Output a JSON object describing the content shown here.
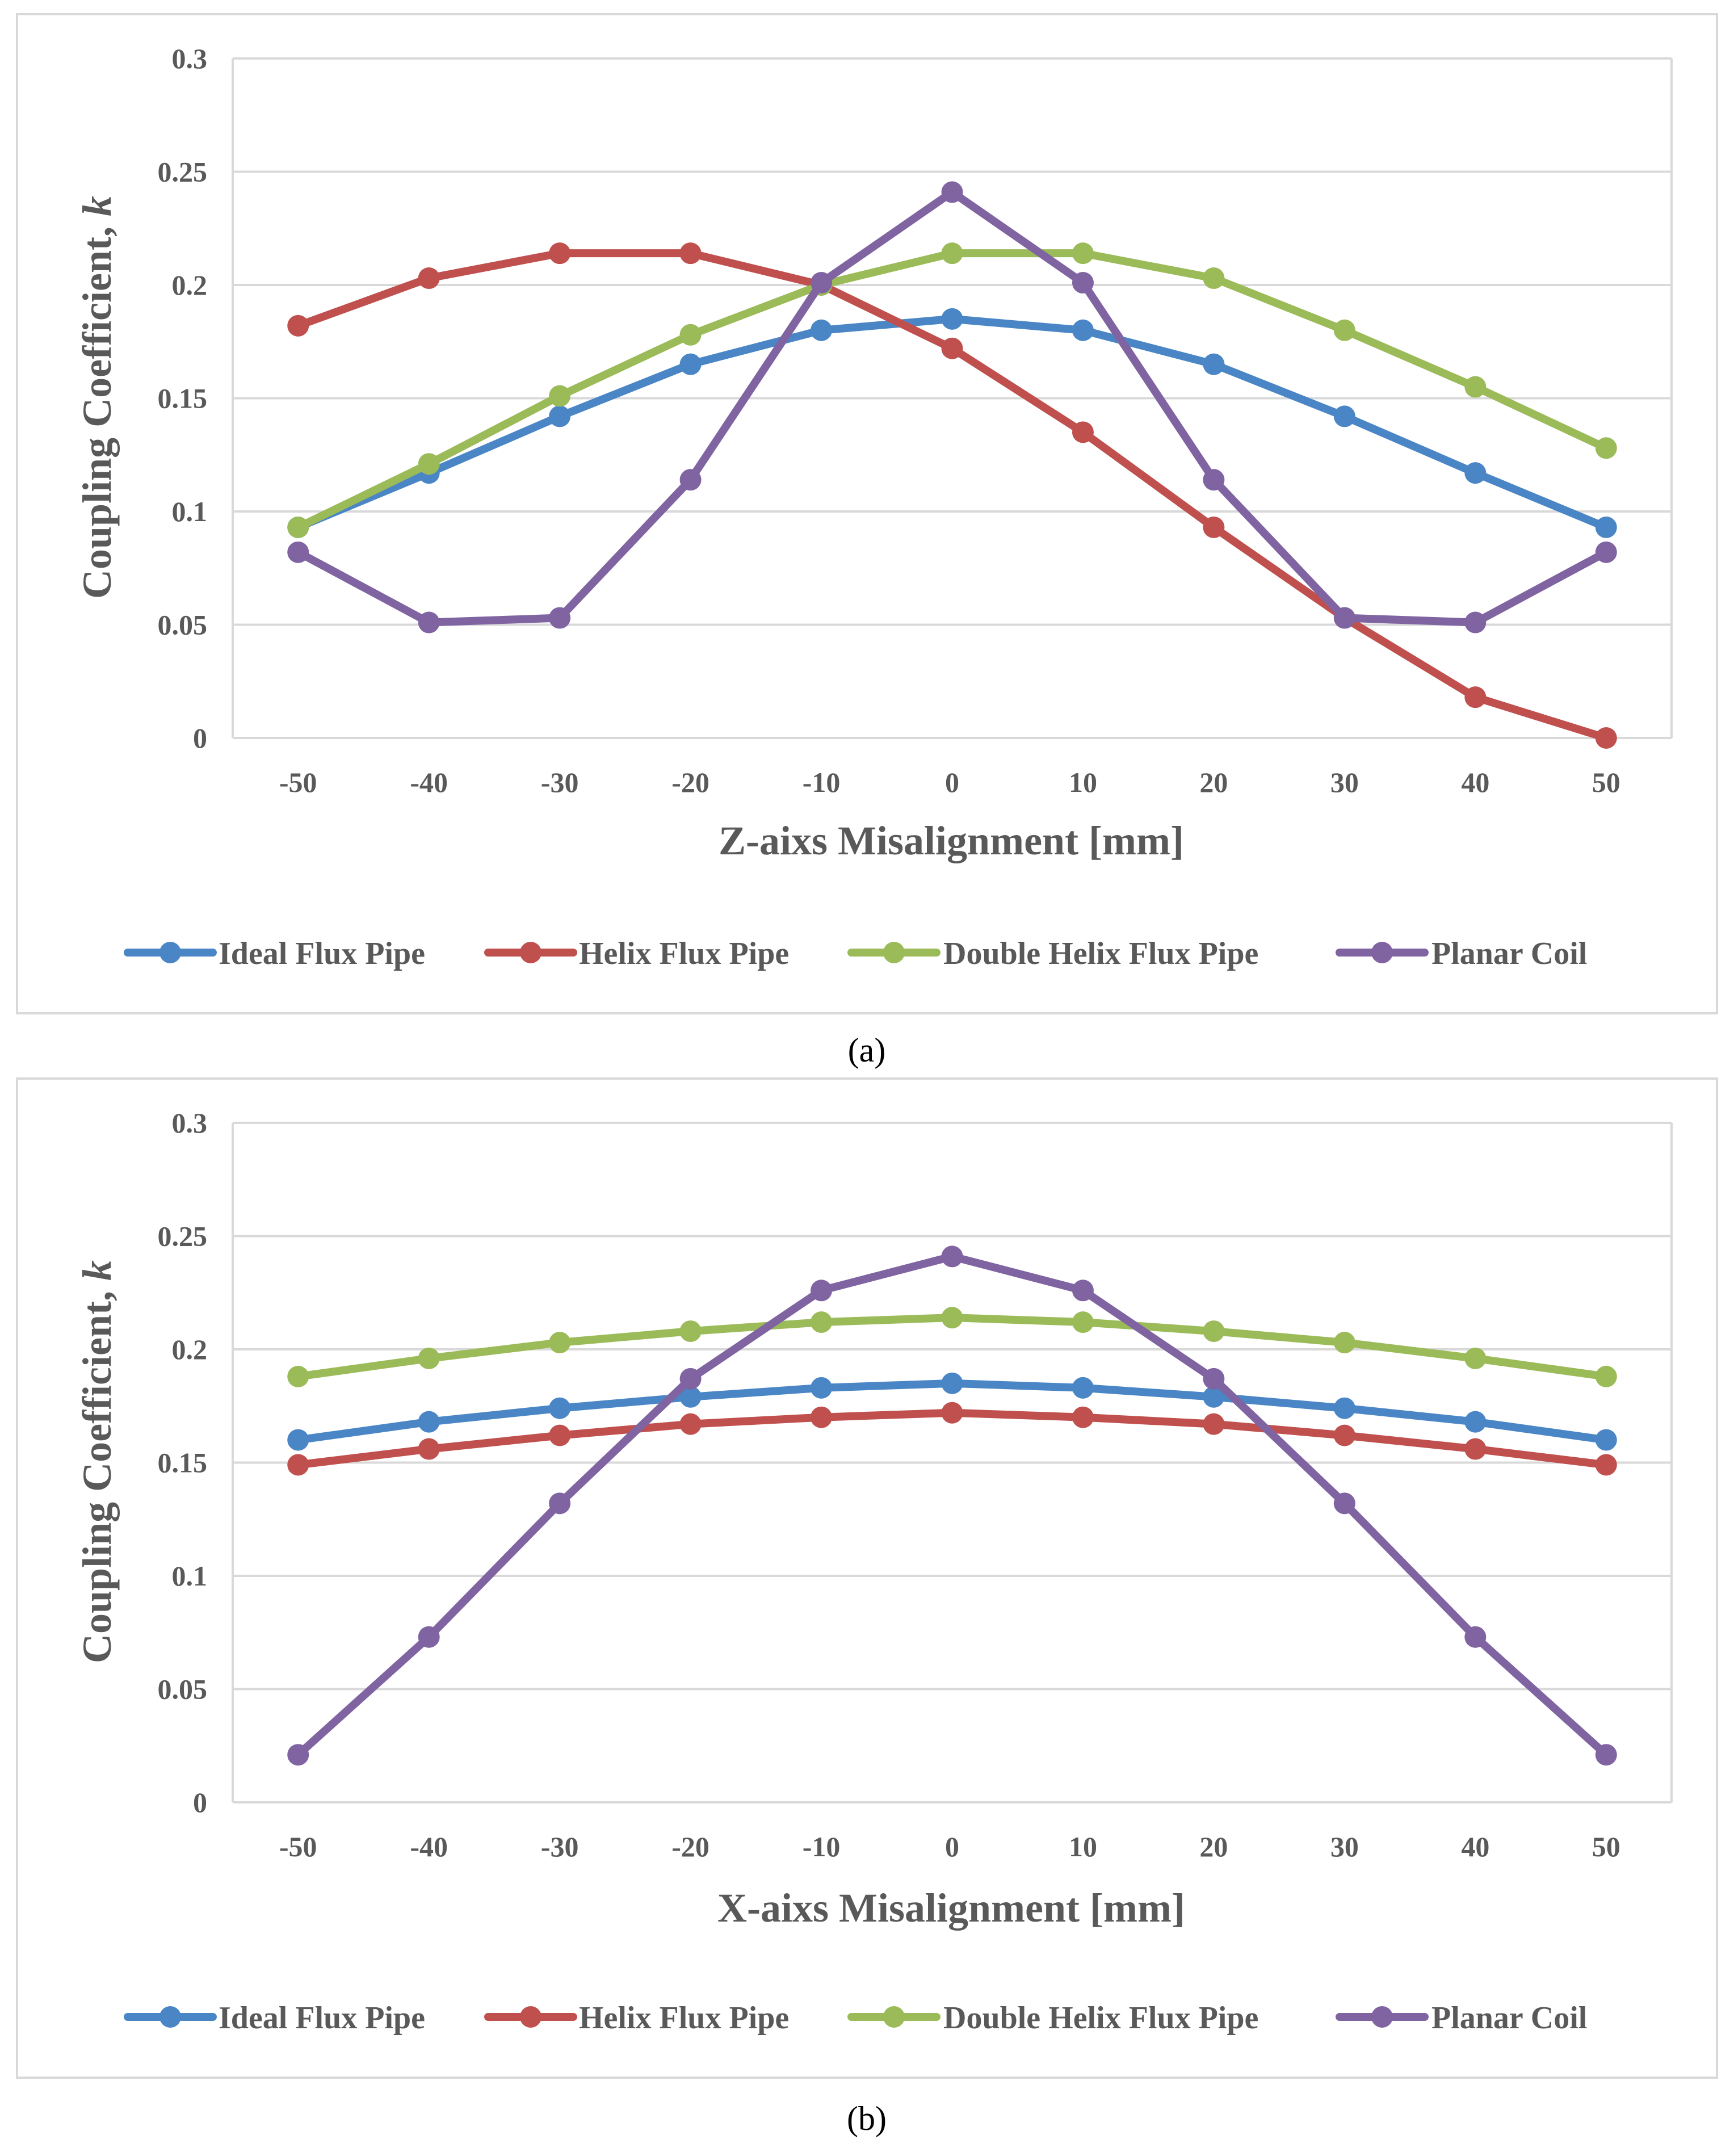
{
  "legend": [
    "Ideal Flux Pipe",
    "Helix Flux Pipe",
    "Double Helix Flux Pipe",
    "Planar Coil"
  ],
  "colors": {
    "Ideal Flux Pipe": "#4a86c5",
    "Helix Flux Pipe": "#c0504d",
    "Double Helix Flux Pipe": "#9bbb59",
    "Planar Coil": "#8064a2"
  },
  "chart_data": [
    {
      "type": "line",
      "caption": "(a)",
      "xlabel": "Z-aixs Misalignment [mm]",
      "ylabel_main": "Coupling Coefficient, ",
      "ylabel_italic": "k",
      "x": [
        -50,
        -40,
        -30,
        -20,
        -10,
        0,
        10,
        20,
        30,
        40,
        50
      ],
      "ylim": [
        0,
        0.3
      ],
      "yticks": [
        "0",
        "0.05",
        "0.1",
        "0.15",
        "0.2",
        "0.25",
        "0.3"
      ],
      "grid": true,
      "legend_position": "bottom",
      "series": [
        {
          "name": "Ideal Flux Pipe",
          "values": [
            0.093,
            0.117,
            0.142,
            0.165,
            0.18,
            0.185,
            0.18,
            0.165,
            0.142,
            0.117,
            0.093
          ]
        },
        {
          "name": "Helix Flux Pipe",
          "values": [
            0.182,
            0.203,
            0.214,
            0.214,
            0.2,
            0.172,
            0.135,
            0.093,
            0.053,
            0.018,
            0.0
          ]
        },
        {
          "name": "Double Helix Flux Pipe",
          "values": [
            0.093,
            0.121,
            0.151,
            0.178,
            0.2,
            0.214,
            0.214,
            0.203,
            0.18,
            0.155,
            0.128
          ]
        },
        {
          "name": "Planar Coil",
          "values": [
            0.082,
            0.051,
            0.053,
            0.114,
            0.201,
            0.241,
            0.201,
            0.114,
            0.053,
            0.051,
            0.082
          ]
        }
      ]
    },
    {
      "type": "line",
      "caption": "(b)",
      "xlabel": "X-aixs Misalignment [mm]",
      "ylabel_main": "Coupling Coefficient, ",
      "ylabel_italic": "k",
      "x": [
        -50,
        -40,
        -30,
        -20,
        -10,
        0,
        10,
        20,
        30,
        40,
        50
      ],
      "ylim": [
        0,
        0.3
      ],
      "yticks": [
        "0",
        "0.05",
        "0.1",
        "0.15",
        "0.2",
        "0.25",
        "0.3"
      ],
      "grid": true,
      "legend_position": "bottom",
      "series": [
        {
          "name": "Ideal Flux Pipe",
          "values": [
            0.16,
            0.168,
            0.174,
            0.179,
            0.183,
            0.185,
            0.183,
            0.179,
            0.174,
            0.168,
            0.16
          ]
        },
        {
          "name": "Helix Flux Pipe",
          "values": [
            0.149,
            0.156,
            0.162,
            0.167,
            0.17,
            0.172,
            0.17,
            0.167,
            0.162,
            0.156,
            0.149
          ]
        },
        {
          "name": "Double Helix Flux Pipe",
          "values": [
            0.188,
            0.196,
            0.203,
            0.208,
            0.212,
            0.214,
            0.212,
            0.208,
            0.203,
            0.196,
            0.188
          ]
        },
        {
          "name": "Planar Coil",
          "values": [
            0.021,
            0.073,
            0.132,
            0.187,
            0.226,
            0.241,
            0.226,
            0.187,
            0.132,
            0.073,
            0.021
          ]
        }
      ]
    }
  ]
}
